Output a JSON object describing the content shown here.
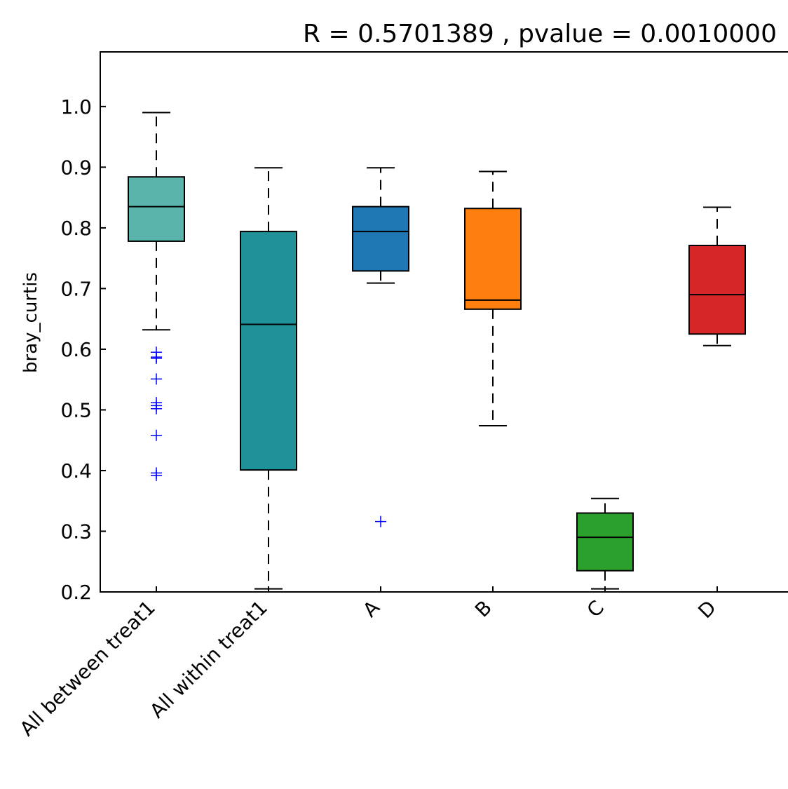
{
  "chart_data": {
    "type": "box",
    "title": "R = 0.5701389 , pvalue = 0.0010000",
    "xlabel": "",
    "ylabel": "bray_curtis",
    "ylim": [
      0.2,
      1.09
    ],
    "yticks": [
      0.2,
      0.3,
      0.4,
      0.5,
      0.6,
      0.7,
      0.8,
      0.9,
      1.0
    ],
    "ytick_labels": [
      "0.2",
      "0.3",
      "0.4",
      "0.5",
      "0.6",
      "0.7",
      "0.8",
      "0.9",
      "1.0"
    ],
    "categories": [
      "All between treat1",
      "All within treat1",
      "A",
      "B",
      "C",
      "D"
    ],
    "grid": false,
    "boxes": [
      {
        "label": "All between treat1",
        "whisker_low": 0.632,
        "q1": 0.778,
        "median": 0.835,
        "q3": 0.884,
        "whisker_high": 0.99,
        "outliers": [
          0.595,
          0.587,
          0.585,
          0.551,
          0.512,
          0.507,
          0.502,
          0.458,
          0.396,
          0.392
        ],
        "color": "#5ab4ac"
      },
      {
        "label": "All within treat1",
        "whisker_low": 0.205,
        "q1": 0.401,
        "median": 0.641,
        "q3": 0.794,
        "whisker_high": 0.899,
        "outliers": [],
        "color": "#1f9198"
      },
      {
        "label": "A",
        "whisker_low": 0.709,
        "q1": 0.729,
        "median": 0.794,
        "q3": 0.835,
        "whisker_high": 0.899,
        "outliers": [
          0.316
        ],
        "color": "#1f77b4"
      },
      {
        "label": "B",
        "whisker_low": 0.474,
        "q1": 0.666,
        "median": 0.681,
        "q3": 0.832,
        "whisker_high": 0.893,
        "outliers": [],
        "color": "#ff7f0e"
      },
      {
        "label": "C",
        "whisker_low": 0.205,
        "q1": 0.235,
        "median": 0.29,
        "q3": 0.33,
        "whisker_high": 0.354,
        "outliers": [],
        "color": "#2ca02c"
      },
      {
        "label": "D",
        "whisker_low": 0.606,
        "q1": 0.625,
        "median": 0.69,
        "q3": 0.771,
        "whisker_high": 0.834,
        "outliers": [],
        "color": "#d62728"
      }
    ],
    "outlier_color": "#0000ff"
  }
}
